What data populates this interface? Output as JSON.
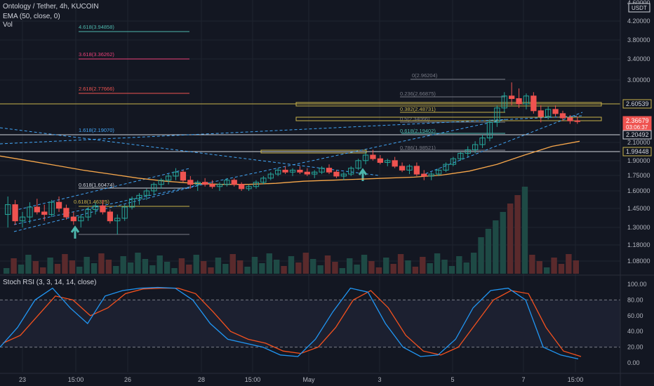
{
  "header": {
    "symbol_line": "Ontology / Tether, 4h, KUCOIN",
    "ema_line": "EMA (50, close, 0)",
    "vol_line": "Vol",
    "rsi_line": "Stoch RSI (3, 3, 14, 14, close)"
  },
  "price_axis": {
    "currency": "USDT",
    "ticks": [
      "4.20000",
      "3.80000",
      "3.40000",
      "3.00000",
      "2.10000",
      "1.90000",
      "1.75000",
      "1.60000",
      "1.45000",
      "1.30000",
      "1.18000",
      "1.08000"
    ],
    "top_partial": "4.60000",
    "tags": [
      {
        "label": "2.60539",
        "price": 2.60539,
        "bg": "#131722",
        "fg": "#d1d4dc",
        "border": "#c9b34a"
      },
      {
        "label": "2.36679",
        "price": 2.36679,
        "bg": "#ef5350",
        "fg": "#ffffff",
        "border": "#ef5350",
        "sub": "03:06:37"
      },
      {
        "label": "2.20492",
        "price": 2.20492,
        "bg": "#131722",
        "fg": "#d1d4dc",
        "border": "#d1d4dc"
      },
      {
        "label": "1.99448",
        "price": 1.99448,
        "bg": "#131722",
        "fg": "#d1d4dc",
        "border": "#c9b34a"
      }
    ]
  },
  "time_axis": [
    "23",
    "15:00",
    "26",
    "28",
    "15:00",
    "May",
    "3",
    "5",
    "7",
    "15:00"
  ],
  "rsi_axis": [
    "100.00",
    "80.00",
    "60.00",
    "40.00",
    "20.00",
    "0.00"
  ],
  "fib_labels": [
    {
      "text": "4.618(3.94858)",
      "color": "#4db6ac"
    },
    {
      "text": "3.618(3.36262)",
      "color": "#ec407a"
    },
    {
      "text": "2.618(2.77666)",
      "color": "#ef5350"
    },
    {
      "text": "1.618(2.19070)",
      "color": "#42a5f5"
    },
    {
      "text": "0(2.96204)",
      "color": "#787b86"
    },
    {
      "text": "0.236(2.66875)",
      "color": "#787b86"
    },
    {
      "text": "0.382(2.48731)",
      "color": "#c9b34a"
    },
    {
      "text": "0.5(2.34066)",
      "color": "#787b86"
    },
    {
      "text": "0.618(2.19402)",
      "color": "#4db6ac"
    },
    {
      "text": "0.786(1.98521)",
      "color": "#787b86"
    },
    {
      "text": "0.618(1.60474)",
      "color": "#d1d4dc"
    },
    {
      "text": "0.618(1.46325)",
      "color": "#c9b34a"
    }
  ],
  "colors": {
    "up": "#26a69a",
    "down": "#ef5350",
    "ema": "#f7a74b",
    "rsi_k": "#2196f3",
    "rsi_d": "#f4511e",
    "bg": "#131722",
    "grid": "#1f2430",
    "band": "#1c2030"
  },
  "chart_data": {
    "type": "candlestick",
    "symbol": "Ontology / Tether",
    "interval": "4h",
    "exchange": "KUCOIN",
    "y_scale": "log",
    "ylim": [
      1.0,
      4.6
    ],
    "ohlc": [
      [
        1.4,
        1.55,
        1.3,
        1.48
      ],
      [
        1.48,
        1.52,
        1.32,
        1.35
      ],
      [
        1.35,
        1.42,
        1.3,
        1.38
      ],
      [
        1.38,
        1.5,
        1.33,
        1.46
      ],
      [
        1.46,
        1.53,
        1.4,
        1.42
      ],
      [
        1.42,
        1.48,
        1.35,
        1.4
      ],
      [
        1.4,
        1.52,
        1.38,
        1.5
      ],
      [
        1.5,
        1.55,
        1.42,
        1.45
      ],
      [
        1.45,
        1.48,
        1.36,
        1.38
      ],
      [
        1.38,
        1.42,
        1.32,
        1.35
      ],
      [
        1.35,
        1.4,
        1.3,
        1.38
      ],
      [
        1.38,
        1.46,
        1.35,
        1.44
      ],
      [
        1.44,
        1.5,
        1.4,
        1.47
      ],
      [
        1.47,
        1.52,
        1.4,
        1.42
      ],
      [
        1.42,
        1.44,
        1.33,
        1.35
      ],
      [
        1.35,
        1.4,
        1.25,
        1.37
      ],
      [
        1.37,
        1.48,
        1.35,
        1.46
      ],
      [
        1.46,
        1.55,
        1.44,
        1.53
      ],
      [
        1.53,
        1.58,
        1.48,
        1.56
      ],
      [
        1.56,
        1.62,
        1.52,
        1.6
      ],
      [
        1.6,
        1.68,
        1.56,
        1.66
      ],
      [
        1.66,
        1.72,
        1.62,
        1.7
      ],
      [
        1.7,
        1.76,
        1.66,
        1.74
      ],
      [
        1.74,
        1.82,
        1.7,
        1.78
      ],
      [
        1.78,
        1.8,
        1.68,
        1.7
      ],
      [
        1.7,
        1.74,
        1.62,
        1.66
      ],
      [
        1.66,
        1.7,
        1.6,
        1.68
      ],
      [
        1.68,
        1.72,
        1.64,
        1.66
      ],
      [
        1.66,
        1.7,
        1.62,
        1.64
      ],
      [
        1.64,
        1.68,
        1.6,
        1.66
      ],
      [
        1.66,
        1.72,
        1.64,
        1.7
      ],
      [
        1.7,
        1.72,
        1.64,
        1.66
      ],
      [
        1.66,
        1.68,
        1.6,
        1.62
      ],
      [
        1.62,
        1.66,
        1.6,
        1.64
      ],
      [
        1.64,
        1.7,
        1.62,
        1.68
      ],
      [
        1.68,
        1.74,
        1.66,
        1.72
      ],
      [
        1.72,
        1.78,
        1.7,
        1.76
      ],
      [
        1.76,
        1.82,
        1.74,
        1.8
      ],
      [
        1.8,
        1.84,
        1.76,
        1.78
      ],
      [
        1.78,
        1.82,
        1.74,
        1.8
      ],
      [
        1.8,
        1.84,
        1.76,
        1.78
      ],
      [
        1.78,
        1.82,
        1.74,
        1.76
      ],
      [
        1.76,
        1.8,
        1.72,
        1.78
      ],
      [
        1.78,
        1.84,
        1.76,
        1.82
      ],
      [
        1.82,
        1.86,
        1.76,
        1.78
      ],
      [
        1.78,
        1.8,
        1.72,
        1.74
      ],
      [
        1.74,
        1.78,
        1.7,
        1.76
      ],
      [
        1.76,
        1.84,
        1.74,
        1.82
      ],
      [
        1.82,
        1.92,
        1.8,
        1.9
      ],
      [
        1.9,
        2.0,
        1.86,
        1.96
      ],
      [
        1.96,
        2.02,
        1.9,
        1.92
      ],
      [
        1.92,
        1.96,
        1.86,
        1.88
      ],
      [
        1.88,
        1.92,
        1.84,
        1.9
      ],
      [
        1.9,
        1.94,
        1.82,
        1.84
      ],
      [
        1.84,
        1.88,
        1.78,
        1.8
      ],
      [
        1.8,
        1.86,
        1.76,
        1.84
      ],
      [
        1.84,
        1.88,
        1.74,
        1.76
      ],
      [
        1.76,
        1.8,
        1.7,
        1.74
      ],
      [
        1.74,
        1.78,
        1.7,
        1.76
      ],
      [
        1.76,
        1.82,
        1.74,
        1.8
      ],
      [
        1.8,
        1.88,
        1.78,
        1.86
      ],
      [
        1.86,
        1.94,
        1.84,
        1.92
      ],
      [
        1.92,
        2.0,
        1.9,
        1.98
      ],
      [
        1.98,
        2.06,
        1.94,
        2.02
      ],
      [
        2.02,
        2.12,
        1.98,
        2.08
      ],
      [
        2.08,
        2.2,
        2.04,
        2.16
      ],
      [
        2.16,
        2.4,
        2.12,
        2.36
      ],
      [
        2.36,
        2.6,
        2.3,
        2.56
      ],
      [
        2.56,
        2.8,
        2.5,
        2.74
      ],
      [
        2.74,
        2.96,
        2.6,
        2.7
      ],
      [
        2.7,
        2.86,
        2.56,
        2.62
      ],
      [
        2.62,
        2.78,
        2.54,
        2.74
      ],
      [
        2.74,
        2.8,
        2.48,
        2.52
      ],
      [
        2.52,
        2.6,
        2.36,
        2.44
      ],
      [
        2.44,
        2.58,
        2.4,
        2.54
      ],
      [
        2.54,
        2.6,
        2.44,
        2.48
      ],
      [
        2.48,
        2.52,
        2.38,
        2.42
      ],
      [
        2.42,
        2.46,
        2.34,
        2.38
      ],
      [
        2.38,
        2.44,
        2.34,
        2.37
      ]
    ],
    "ema50": [
      1.95,
      1.9,
      1.85,
      1.8,
      1.76,
      1.72,
      1.69,
      1.67,
      1.66,
      1.66,
      1.67,
      1.69,
      1.7,
      1.71,
      1.72,
      1.73,
      1.75,
      1.79,
      1.86,
      1.96,
      2.06,
      2.12
    ],
    "stoch_k": [
      20,
      45,
      80,
      95,
      70,
      50,
      85,
      92,
      95,
      96,
      95,
      80,
      50,
      30,
      25,
      20,
      10,
      8,
      30,
      65,
      95,
      90,
      50,
      20,
      8,
      10,
      30,
      70,
      92,
      95,
      80,
      20,
      10,
      5
    ],
    "stoch_d": [
      25,
      35,
      60,
      85,
      80,
      60,
      70,
      88,
      94,
      95,
      95,
      88,
      65,
      40,
      30,
      25,
      15,
      12,
      20,
      45,
      80,
      92,
      70,
      35,
      15,
      10,
      20,
      50,
      80,
      92,
      88,
      45,
      15,
      8
    ]
  }
}
